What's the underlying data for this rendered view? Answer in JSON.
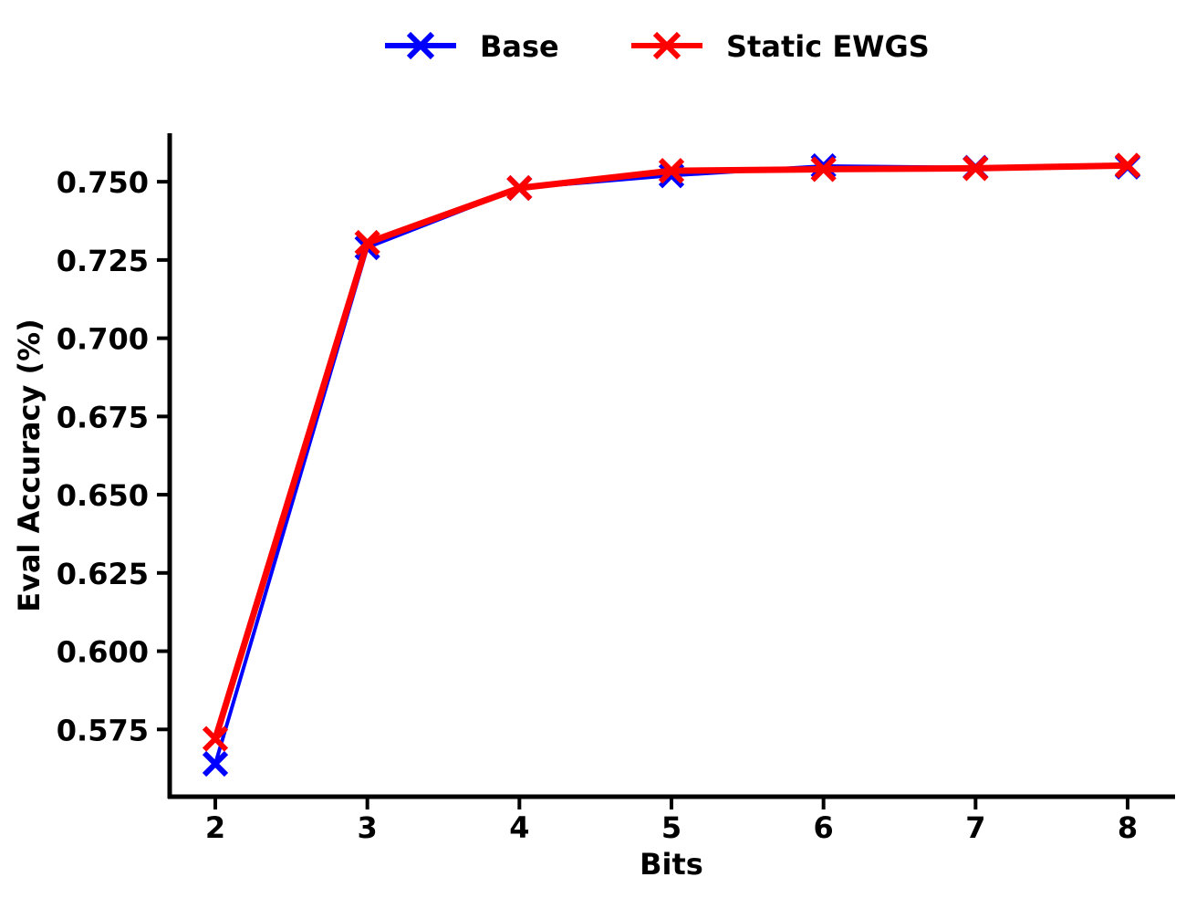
{
  "chart_data": {
    "type": "line",
    "title": "",
    "xlabel": "Bits",
    "ylabel": "Eval Accuracy (%)",
    "x": [
      2,
      3,
      4,
      5,
      6,
      7,
      8
    ],
    "xlim": [
      1.7,
      8.3
    ],
    "ylim": [
      0.5535,
      0.7655
    ],
    "yticks": [
      0.575,
      0.6,
      0.625,
      0.65,
      0.675,
      0.7,
      0.725,
      0.75
    ],
    "ytick_labels": [
      "0.575",
      "0.600",
      "0.625",
      "0.650",
      "0.675",
      "0.700",
      "0.725",
      "0.750"
    ],
    "xtick_labels": [
      "2",
      "3",
      "4",
      "5",
      "6",
      "7",
      "8"
    ],
    "grid": false,
    "legend_position": "top-center",
    "marker": "x",
    "series": [
      {
        "name": "Base",
        "color": "#0000ff",
        "values": [
          0.564,
          0.729,
          0.748,
          0.752,
          0.755,
          0.7545,
          0.7548
        ]
      },
      {
        "name": "Static EWGS",
        "color": "#ff0000",
        "values": [
          0.572,
          0.7305,
          0.748,
          0.7535,
          0.754,
          0.7543,
          0.7552
        ]
      }
    ]
  }
}
